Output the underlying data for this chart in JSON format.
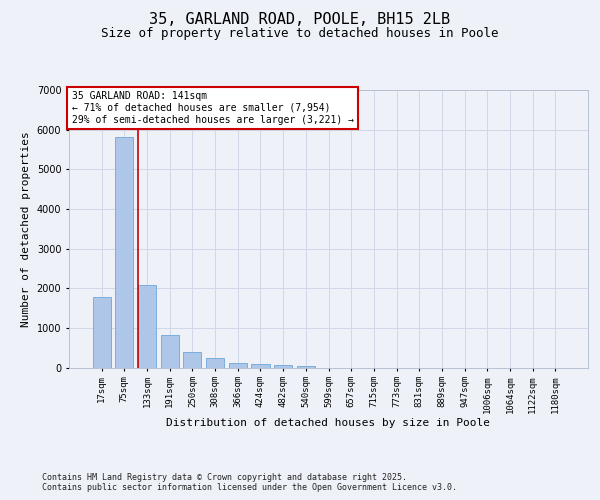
{
  "title1": "35, GARLAND ROAD, POOLE, BH15 2LB",
  "title2": "Size of property relative to detached houses in Poole",
  "xlabel": "Distribution of detached houses by size in Poole",
  "ylabel": "Number of detached properties",
  "categories": [
    "17sqm",
    "75sqm",
    "133sqm",
    "191sqm",
    "250sqm",
    "308sqm",
    "366sqm",
    "424sqm",
    "482sqm",
    "540sqm",
    "599sqm",
    "657sqm",
    "715sqm",
    "773sqm",
    "831sqm",
    "889sqm",
    "947sqm",
    "1006sqm",
    "1064sqm",
    "1122sqm",
    "1180sqm"
  ],
  "values": [
    1780,
    5820,
    2090,
    820,
    380,
    230,
    120,
    90,
    60,
    50,
    0,
    0,
    0,
    0,
    0,
    0,
    0,
    0,
    0,
    0,
    0
  ],
  "bar_color": "#aec6e8",
  "bar_edge_color": "#5b9bd5",
  "grid_color": "#d0d8e8",
  "background_color": "#eef2f8",
  "annotation_text": "35 GARLAND ROAD: 141sqm\n← 71% of detached houses are smaller (7,954)\n29% of semi-detached houses are larger (3,221) →",
  "annotation_box_color": "#ffffff",
  "annotation_box_edge": "#cc0000",
  "vline_x_index": 2,
  "vline_color": "#cc0000",
  "ylim": [
    0,
    7000
  ],
  "yticks": [
    0,
    1000,
    2000,
    3000,
    4000,
    5000,
    6000,
    7000
  ],
  "footer": "Contains HM Land Registry data © Crown copyright and database right 2025.\nContains public sector information licensed under the Open Government Licence v3.0.",
  "title_fontsize": 11,
  "subtitle_fontsize": 9,
  "tick_fontsize": 6.5,
  "ylabel_fontsize": 8,
  "xlabel_fontsize": 8,
  "annotation_fontsize": 7,
  "footer_fontsize": 6
}
